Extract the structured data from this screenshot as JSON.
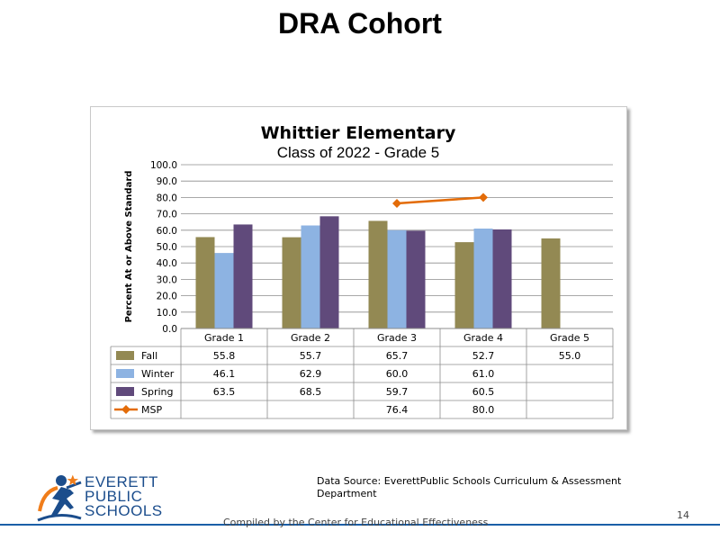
{
  "slide": {
    "title": "DRA Cohort",
    "source": "Data Source: EverettPublic Schools Curriculum & Assessment Department",
    "footer": "Compiled by the Center for Educational Effectiveness",
    "page_number": "14"
  },
  "logo": {
    "line1": "EVERETT",
    "line2": "PUBLIC",
    "line3": "SCHOOLS"
  },
  "colors": {
    "fall": "#938953",
    "winter": "#8db3e2",
    "spring": "#604a7b",
    "msp": "#e36c09"
  },
  "chart_data": {
    "type": "bar",
    "title": "Whittier Elementary",
    "subtitle": "Class of 2022 - Grade 5",
    "ylabel": "Percent At or Above Standard",
    "ylim": [
      0,
      100
    ],
    "yticks": [
      "100.0",
      "90.0",
      "80.0",
      "70.0",
      "60.0",
      "50.0",
      "40.0",
      "30.0",
      "20.0",
      "10.0",
      "0.0"
    ],
    "categories": [
      "Grade 1",
      "Grade 2",
      "Grade 3",
      "Grade 4",
      "Grade 5"
    ],
    "series": [
      {
        "name": "Fall",
        "type": "bar",
        "values": [
          55.8,
          55.7,
          65.7,
          52.7,
          55.0
        ]
      },
      {
        "name": "Winter",
        "type": "bar",
        "values": [
          46.1,
          62.9,
          60.0,
          61.0,
          null
        ]
      },
      {
        "name": "Spring",
        "type": "bar",
        "values": [
          63.5,
          68.5,
          59.7,
          60.5,
          null
        ]
      },
      {
        "name": "MSP",
        "type": "line",
        "values": [
          null,
          null,
          76.4,
          80.0,
          null
        ]
      }
    ],
    "table_values": [
      [
        "55.8",
        "55.7",
        "65.7",
        "52.7",
        "55.0"
      ],
      [
        "46.1",
        "62.9",
        "60.0",
        "61.0",
        ""
      ],
      [
        "63.5",
        "68.5",
        "59.7",
        "60.5",
        ""
      ],
      [
        "",
        "",
        "76.4",
        "80.0",
        ""
      ]
    ],
    "grid": true,
    "legend": "data table"
  }
}
